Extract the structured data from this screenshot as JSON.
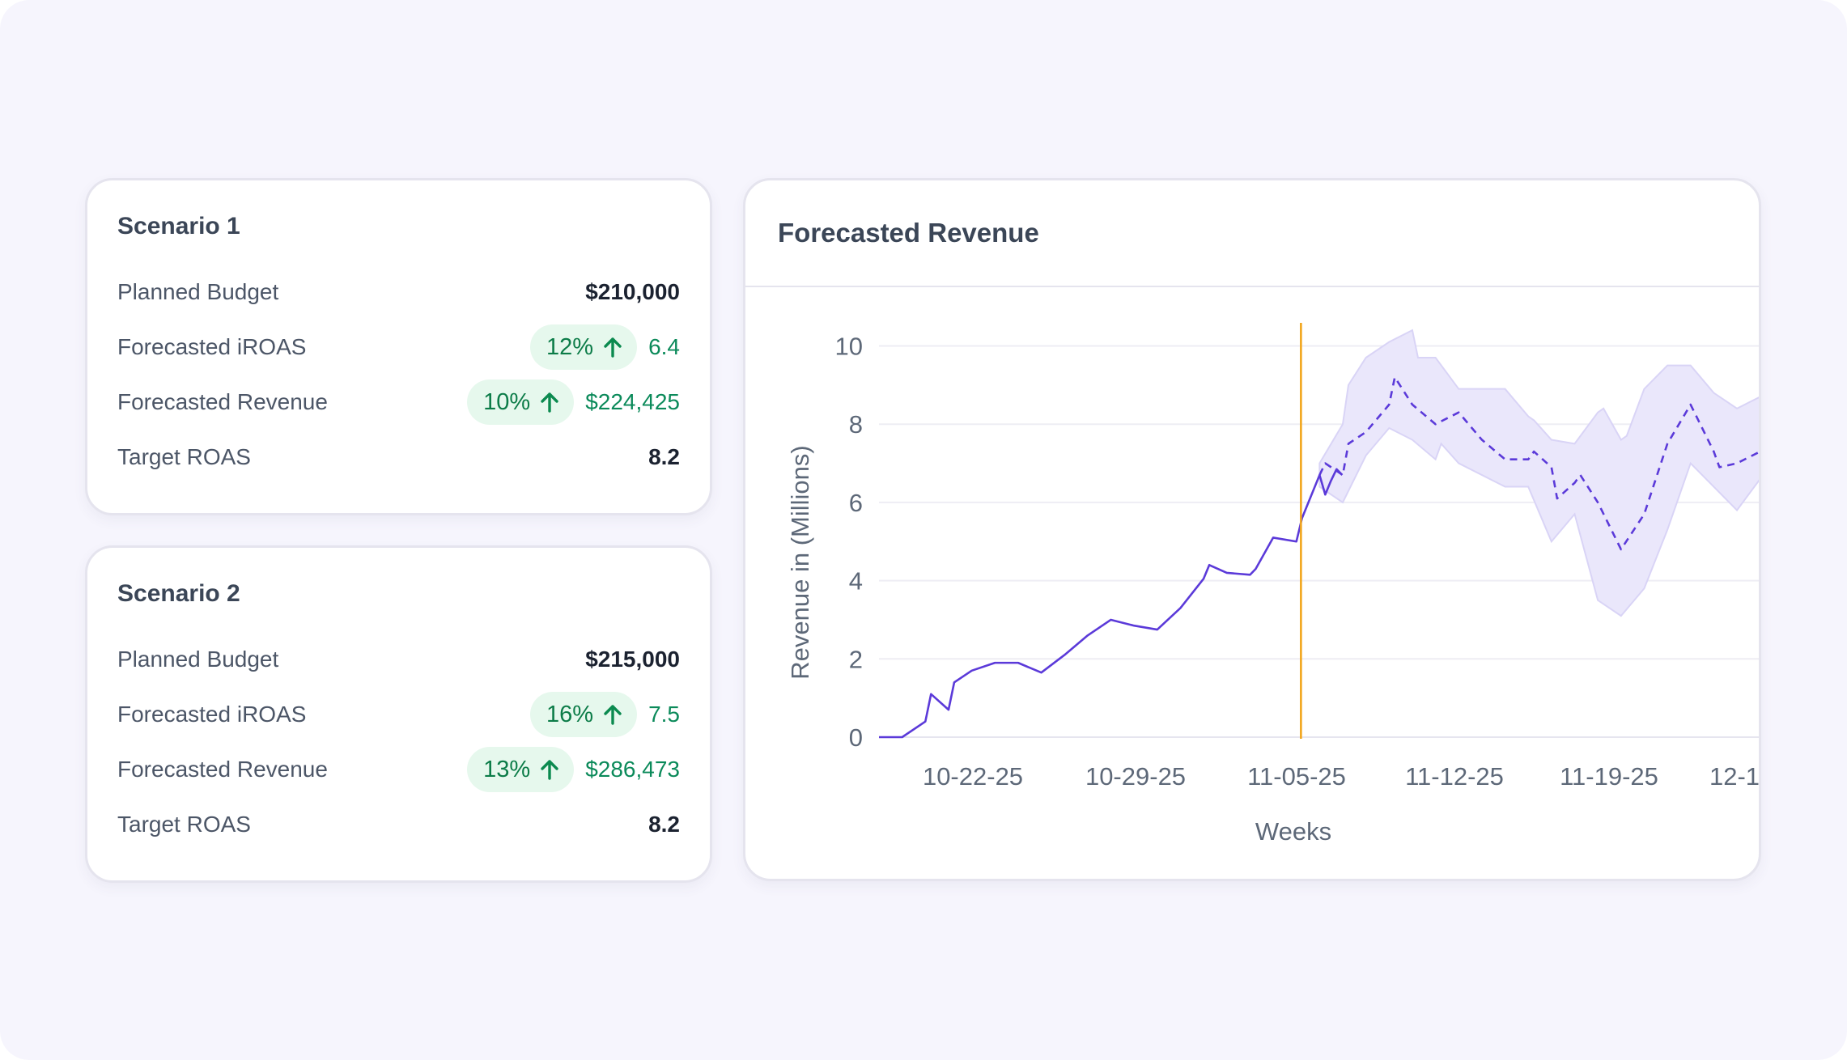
{
  "scenarios": [
    {
      "title": "Scenario 1",
      "planned_budget": {
        "label": "Planned Budget",
        "value": "$210,000"
      },
      "iroas": {
        "label": "Forecasted iROAS",
        "delta": "12%",
        "value": "6.4"
      },
      "revenue": {
        "label": "Forecasted Revenue",
        "delta": "10%",
        "value": "$224,425"
      },
      "target_roas": {
        "label": "Target ROAS",
        "value": "8.2"
      }
    },
    {
      "title": "Scenario 2",
      "planned_budget": {
        "label": "Planned Budget",
        "value": "$215,000"
      },
      "iroas": {
        "label": "Forecasted iROAS",
        "delta": "16%",
        "value": "7.5"
      },
      "revenue": {
        "label": "Forecasted Revenue",
        "delta": "13%",
        "value": "$286,473"
      },
      "target_roas": {
        "label": "Target ROAS",
        "value": "8.2"
      }
    }
  ],
  "chart": {
    "title": "Forecasted Revenue"
  },
  "colors": {
    "actual_line": "#5b3ad9",
    "forecast_line": "#5b3ad9",
    "band_fill": "#eae7fb",
    "cutoff_line": "#f2a61c",
    "positive_green": "#0b8a5a",
    "pill_bg": "#e6f8ed"
  },
  "icons": {
    "delta_up": "arrow-up-icon"
  },
  "chart_data": {
    "type": "line",
    "title": "Forecasted Revenue",
    "xlabel": "Weeks",
    "ylabel": "Revenue in (Millions)",
    "ylim": [
      0,
      10.5
    ],
    "yticks": [
      0,
      2,
      4,
      6,
      8,
      10
    ],
    "xticks": [
      "10-22-25",
      "10-29-25",
      "11-05-25",
      "11-12-25",
      "11-19-25",
      "12-1"
    ],
    "x_start": "10-18-25",
    "grid": true,
    "forecast_start": "11-06-25",
    "series": [
      {
        "kind": "actual",
        "style": "solid",
        "points": [
          [
            "10-18-25",
            0
          ],
          [
            "10-19-25",
            0
          ],
          [
            "10-20-25",
            0.4
          ],
          [
            "10-20-25",
            1.1
          ],
          [
            "10-21-25",
            0.7
          ],
          [
            "10-21-25",
            1.4
          ],
          [
            "10-22-25",
            1.7
          ],
          [
            "10-23-25",
            1.9
          ],
          [
            "10-24-25",
            1.9
          ],
          [
            "10-25-25",
            1.65
          ],
          [
            "10-26-25",
            2.1
          ],
          [
            "10-27-25",
            2.6
          ],
          [
            "10-28-25",
            3.0
          ],
          [
            "10-29-25",
            2.85
          ],
          [
            "10-30-25",
            2.75
          ],
          [
            "10-31-25",
            3.3
          ],
          [
            "11-01-25",
            4.05
          ],
          [
            "11-01-25",
            4.4
          ],
          [
            "11-02-25",
            4.2
          ],
          [
            "11-03-25",
            4.15
          ],
          [
            "11-03-25",
            4.3
          ],
          [
            "11-04-25",
            5.1
          ],
          [
            "11-05-25",
            5.0
          ],
          [
            "11-05-25",
            5.6
          ],
          [
            "11-06-25",
            6.7
          ],
          [
            "11-06-25",
            6.2
          ],
          [
            "11-06-25",
            6.55
          ],
          [
            "11-06-25",
            6.85
          ],
          [
            "11-06-25",
            6.7
          ]
        ]
      },
      {
        "kind": "forecast",
        "style": "dashed",
        "points": [
          [
            "11-06-25",
            6.7
          ],
          [
            "11-06-25",
            7.0
          ],
          [
            "11-07-25",
            6.7
          ],
          [
            "11-07-25",
            7.5
          ],
          [
            "11-08-25",
            7.8
          ],
          [
            "11-09-25",
            8.5
          ],
          [
            "11-09-25",
            9.2
          ],
          [
            "11-10-25",
            8.5
          ],
          [
            "11-11-25",
            8.0
          ],
          [
            "11-12-25",
            8.3
          ],
          [
            "11-13-25",
            7.6
          ],
          [
            "11-14-25",
            7.1
          ],
          [
            "11-15-25",
            7.1
          ],
          [
            "11-15-25",
            7.3
          ],
          [
            "11-16-25",
            6.9
          ],
          [
            "11-16-25",
            6.1
          ],
          [
            "11-17-25",
            6.5
          ],
          [
            "11-17-25",
            6.7
          ],
          [
            "11-18-25",
            6.0
          ],
          [
            "11-19-25",
            4.8
          ],
          [
            "11-20-25",
            5.7
          ],
          [
            "11-21-25",
            7.5
          ],
          [
            "11-22-25",
            8.5
          ],
          [
            "11-23-25",
            7.3
          ],
          [
            "11-23-25",
            6.9
          ],
          [
            "11-24-25",
            7.0
          ],
          [
            "11-25-25",
            7.3
          ],
          [
            "11-25-25",
            8.1
          ],
          [
            "11-26-25",
            8.3
          ]
        ]
      },
      {
        "kind": "upper_bound",
        "points": [
          [
            "11-06-25",
            7.0
          ],
          [
            "11-07-25",
            8.0
          ],
          [
            "11-07-25",
            9.0
          ],
          [
            "11-08-25",
            9.7
          ],
          [
            "11-09-25",
            10.1
          ],
          [
            "11-10-25",
            10.4
          ],
          [
            "11-10-25",
            9.7
          ],
          [
            "11-11-25",
            9.7
          ],
          [
            "11-12-25",
            8.9
          ],
          [
            "11-14-25",
            8.9
          ],
          [
            "11-15-25",
            8.2
          ],
          [
            "11-15-25",
            8.1
          ],
          [
            "11-16-25",
            7.6
          ],
          [
            "11-17-25",
            7.5
          ],
          [
            "11-18-25",
            8.3
          ],
          [
            "11-18-25",
            8.4
          ],
          [
            "11-19-25",
            7.6
          ],
          [
            "11-19-25",
            7.7
          ],
          [
            "11-20-25",
            8.9
          ],
          [
            "11-21-25",
            9.5
          ],
          [
            "11-22-25",
            9.5
          ],
          [
            "11-23-25",
            8.8
          ],
          [
            "11-24-25",
            8.4
          ],
          [
            "11-25-25",
            8.7
          ],
          [
            "11-26-25",
            9.6
          ]
        ]
      },
      {
        "kind": "lower_bound",
        "points": [
          [
            "11-06-25",
            6.4
          ],
          [
            "11-07-25",
            6.0
          ],
          [
            "11-08-25",
            7.2
          ],
          [
            "11-09-25",
            7.9
          ],
          [
            "11-10-25",
            7.6
          ],
          [
            "11-11-25",
            7.1
          ],
          [
            "11-11-25",
            7.5
          ],
          [
            "11-12-25",
            7.0
          ],
          [
            "11-14-25",
            6.4
          ],
          [
            "11-15-25",
            6.4
          ],
          [
            "11-16-25",
            5.0
          ],
          [
            "11-17-25",
            5.7
          ],
          [
            "11-18-25",
            3.5
          ],
          [
            "11-19-25",
            3.1
          ],
          [
            "11-20-25",
            3.8
          ],
          [
            "11-21-25",
            5.3
          ],
          [
            "11-22-25",
            7.0
          ],
          [
            "11-23-25",
            6.4
          ],
          [
            "11-24-25",
            5.8
          ],
          [
            "11-25-25",
            6.6
          ],
          [
            "11-26-25",
            7.1
          ]
        ]
      }
    ]
  }
}
